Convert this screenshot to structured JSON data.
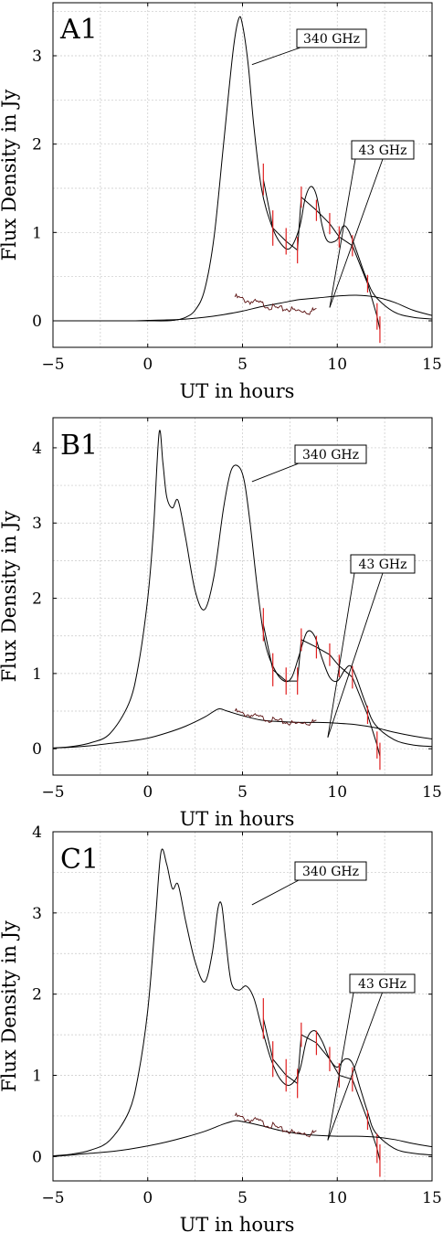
{
  "axis_common": {
    "xlabel": "UT in hours",
    "ylabel": "Flux Density in Jy"
  },
  "chart_data": [
    {
      "type": "line",
      "panel": "A1",
      "xlim": [
        -5,
        15
      ],
      "ylim": [
        -0.3,
        3.6
      ],
      "xticks": [
        -5,
        0,
        5,
        10,
        15
      ],
      "yticks": [
        0,
        1,
        2,
        3
      ],
      "grid": true,
      "xlabel": "UT in hours",
      "ylabel": "Flux Density in Jy",
      "annotations": [
        {
          "text": "340 GHz",
          "points_to": [
            5.5,
            2.9
          ]
        },
        {
          "text": "43 GHz",
          "points_to": [
            9.6,
            0.15
          ]
        }
      ],
      "series": [
        {
          "name": "340 GHz",
          "kind": "model",
          "x": [
            -5,
            -3,
            -1,
            0,
            1,
            1.5,
            2,
            2.5,
            3,
            3.5,
            4,
            4.5,
            4.8,
            5.0,
            5.3,
            5.6,
            6.0,
            6.5,
            7.0,
            7.5,
            8.0,
            8.3,
            8.6,
            8.9,
            9.2,
            9.5,
            10.0,
            10.3,
            10.6,
            11.0,
            11.5,
            12.0,
            13.0,
            14.0,
            15.0
          ],
          "y": [
            0,
            0,
            0,
            0,
            0,
            0.01,
            0.04,
            0.12,
            0.35,
            0.95,
            2.0,
            3.05,
            3.42,
            3.35,
            2.9,
            2.2,
            1.5,
            1.1,
            0.88,
            0.82,
            1.05,
            1.38,
            1.52,
            1.42,
            1.08,
            0.9,
            0.92,
            1.07,
            1.02,
            0.8,
            0.5,
            0.28,
            0.1,
            0.04,
            0.02
          ]
        },
        {
          "name": "340 GHz",
          "kind": "data",
          "x": [
            6.1,
            6.6,
            7.3,
            7.9,
            8.1,
            8.9,
            9.6,
            10.1,
            10.8,
            11.6,
            12.1,
            12.25
          ],
          "y": [
            1.6,
            1.05,
            0.9,
            0.8,
            1.4,
            1.25,
            1.1,
            0.95,
            0.85,
            0.42,
            0.05,
            -0.1
          ],
          "err": [
            0.18,
            0.2,
            0.15,
            0.15,
            0.12,
            0.12,
            0.12,
            0.12,
            0.12,
            0.1,
            0.15,
            0.15
          ]
        },
        {
          "name": "43 GHz",
          "kind": "model",
          "x": [
            -5,
            -3,
            -1,
            0,
            1,
            2,
            3,
            4,
            5,
            6,
            7,
            8,
            9,
            10,
            11,
            12,
            13,
            14,
            15
          ],
          "y": [
            0,
            0,
            0,
            0.005,
            0.01,
            0.02,
            0.04,
            0.07,
            0.11,
            0.16,
            0.2,
            0.24,
            0.26,
            0.28,
            0.29,
            0.27,
            0.21,
            0.12,
            0.06
          ]
        },
        {
          "name": "43 GHz",
          "kind": "data",
          "x": [
            4.6,
            5.0,
            5.4,
            5.8,
            6.2,
            6.6,
            7.0,
            7.4,
            7.8,
            8.2,
            8.6,
            8.9
          ],
          "y": [
            0.27,
            0.24,
            0.22,
            0.2,
            0.18,
            0.15,
            0.13,
            0.14,
            0.11,
            0.12,
            0.1,
            0.14
          ]
        }
      ]
    },
    {
      "type": "line",
      "panel": "B1",
      "xlim": [
        -5,
        15
      ],
      "ylim": [
        -0.35,
        4.4
      ],
      "xticks": [
        -5,
        0,
        5,
        10,
        15
      ],
      "yticks": [
        0,
        1,
        2,
        3,
        4
      ],
      "grid": true,
      "xlabel": "UT in hours",
      "ylabel": "Flux Density in Jy",
      "annotations": [
        {
          "text": "340 GHz",
          "points_to": [
            5.5,
            3.55
          ]
        },
        {
          "text": "43 GHz",
          "points_to": [
            9.5,
            0.15
          ]
        }
      ],
      "series": [
        {
          "name": "340 GHz",
          "kind": "model",
          "x": [
            -5,
            -4,
            -3,
            -2,
            -1,
            -0.5,
            0,
            0.3,
            0.6,
            0.8,
            1.0,
            1.3,
            1.6,
            2.0,
            2.5,
            3.0,
            3.5,
            4.0,
            4.4,
            4.8,
            5.1,
            5.4,
            5.8,
            6.2,
            6.7,
            7.2,
            7.6,
            8.0,
            8.4,
            8.8,
            9.2,
            9.6,
            10.0,
            10.4,
            10.7,
            11.0,
            11.5,
            12.0,
            13.0,
            14.0,
            15.0
          ],
          "y": [
            0.01,
            0.03,
            0.08,
            0.2,
            0.6,
            1.1,
            2.0,
            2.9,
            4.2,
            3.8,
            3.35,
            3.2,
            3.3,
            2.8,
            2.1,
            1.85,
            2.3,
            3.2,
            3.7,
            3.75,
            3.55,
            3.0,
            2.1,
            1.4,
            1.05,
            0.9,
            0.95,
            1.25,
            1.55,
            1.5,
            1.2,
            0.95,
            0.9,
            1.05,
            1.1,
            0.95,
            0.6,
            0.32,
            0.12,
            0.05,
            0.03
          ]
        },
        {
          "name": "340 GHz",
          "kind": "data",
          "x": [
            6.1,
            6.6,
            7.3,
            7.9,
            8.1,
            8.9,
            9.6,
            10.1,
            10.8,
            11.6,
            12.1,
            12.25
          ],
          "y": [
            1.65,
            1.05,
            0.9,
            0.9,
            1.45,
            1.35,
            1.25,
            1.1,
            0.95,
            0.45,
            0.05,
            -0.1
          ],
          "err": [
            0.22,
            0.22,
            0.18,
            0.18,
            0.15,
            0.15,
            0.15,
            0.15,
            0.15,
            0.12,
            0.18,
            0.18
          ]
        },
        {
          "name": "43 GHz",
          "kind": "model",
          "x": [
            -5,
            -4,
            -3,
            -2,
            -1,
            0,
            1,
            2,
            3,
            3.5,
            3.8,
            4.2,
            5.0,
            6.0,
            7.0,
            8.0,
            9.0,
            10.0,
            11.0,
            12.0,
            13.0,
            14.0,
            15.0
          ],
          "y": [
            0.01,
            0.02,
            0.04,
            0.07,
            0.1,
            0.14,
            0.21,
            0.3,
            0.42,
            0.5,
            0.53,
            0.5,
            0.44,
            0.38,
            0.36,
            0.35,
            0.35,
            0.34,
            0.32,
            0.28,
            0.22,
            0.17,
            0.13
          ]
        },
        {
          "name": "43 GHz",
          "kind": "data",
          "x": [
            4.6,
            5.0,
            5.4,
            5.8,
            6.2,
            6.6,
            7.0,
            7.4,
            7.8,
            8.2,
            8.6,
            8.9
          ],
          "y": [
            0.5,
            0.46,
            0.45,
            0.42,
            0.4,
            0.38,
            0.36,
            0.35,
            0.33,
            0.36,
            0.34,
            0.38
          ]
        }
      ]
    },
    {
      "type": "line",
      "panel": "C1",
      "xlim": [
        -5,
        15
      ],
      "ylim": [
        -0.3,
        4.0
      ],
      "xticks": [
        -5,
        0,
        5,
        10,
        15
      ],
      "yticks": [
        0,
        1,
        2,
        3,
        4
      ],
      "grid": true,
      "xlabel": "UT in hours",
      "ylabel": "Flux Density in Jy",
      "annotations": [
        {
          "text": "340 GHz",
          "points_to": [
            5.5,
            3.1
          ]
        },
        {
          "text": "43 GHz",
          "points_to": [
            9.5,
            0.2
          ]
        }
      ],
      "series": [
        {
          "name": "340 GHz",
          "kind": "model",
          "x": [
            -5,
            -4,
            -3,
            -2,
            -1,
            -0.5,
            0,
            0.4,
            0.7,
            1.0,
            1.3,
            1.6,
            2.0,
            2.5,
            3.0,
            3.4,
            3.7,
            3.9,
            4.1,
            4.4,
            4.8,
            5.2,
            5.6,
            6.0,
            6.5,
            7.0,
            7.5,
            8.0,
            8.4,
            8.8,
            9.2,
            9.6,
            10.0,
            10.4,
            10.8,
            11.2,
            11.6,
            12.0,
            13.0,
            14.0,
            15.0
          ],
          "y": [
            0.01,
            0.03,
            0.08,
            0.2,
            0.55,
            1.0,
            1.8,
            2.9,
            3.75,
            3.6,
            3.3,
            3.35,
            2.9,
            2.4,
            2.15,
            2.5,
            3.05,
            3.1,
            2.7,
            2.15,
            2.05,
            2.1,
            1.95,
            1.6,
            1.2,
            0.95,
            0.88,
            1.05,
            1.45,
            1.55,
            1.42,
            1.2,
            1.1,
            1.2,
            1.15,
            0.85,
            0.55,
            0.3,
            0.1,
            0.04,
            0.02
          ]
        },
        {
          "name": "340 GHz",
          "kind": "data",
          "x": [
            6.1,
            6.6,
            7.3,
            7.9,
            8.1,
            8.9,
            9.6,
            10.1,
            10.8,
            11.6,
            12.1,
            12.25
          ],
          "y": [
            1.7,
            1.2,
            1.0,
            0.9,
            1.5,
            1.4,
            1.2,
            1.0,
            0.95,
            0.45,
            0.1,
            -0.05
          ],
          "err": [
            0.25,
            0.22,
            0.2,
            0.18,
            0.15,
            0.15,
            0.15,
            0.15,
            0.15,
            0.12,
            0.18,
            0.2
          ]
        },
        {
          "name": "43 GHz",
          "kind": "model",
          "x": [
            -5,
            -4,
            -3,
            -2,
            -1,
            0,
            1,
            2,
            3,
            4,
            4.6,
            5.0,
            6.0,
            7.0,
            8.0,
            9.0,
            10.0,
            11.0,
            12.0,
            13.0,
            14.0,
            15.0
          ],
          "y": [
            0,
            0.02,
            0.04,
            0.06,
            0.09,
            0.13,
            0.18,
            0.24,
            0.31,
            0.4,
            0.44,
            0.43,
            0.38,
            0.32,
            0.28,
            0.26,
            0.25,
            0.25,
            0.24,
            0.21,
            0.16,
            0.12
          ]
        },
        {
          "name": "43 GHz",
          "kind": "data",
          "x": [
            4.6,
            5.0,
            5.4,
            5.8,
            6.2,
            6.6,
            7.0,
            7.4,
            7.8,
            8.2,
            8.6,
            8.9
          ],
          "y": [
            0.5,
            0.47,
            0.45,
            0.44,
            0.4,
            0.38,
            0.33,
            0.32,
            0.28,
            0.3,
            0.27,
            0.32
          ]
        }
      ]
    }
  ]
}
